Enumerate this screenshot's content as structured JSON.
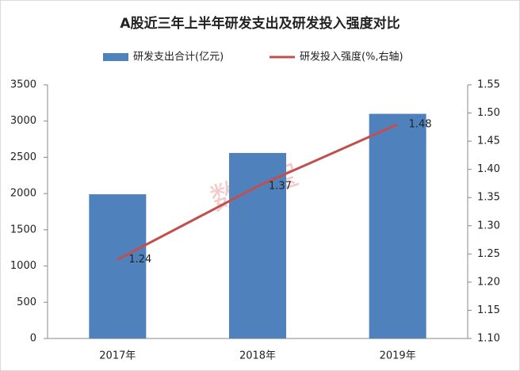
{
  "chart_data": {
    "type": "bar-line",
    "title": "A股近三年上半年研发支出及研发投入强度对比",
    "watermark": "数据宝",
    "categories": [
      "2017年",
      "2018年",
      "2019年"
    ],
    "series": [
      {
        "name": "研发支出合计(亿元)",
        "type": "bar",
        "color": "#4f81bd",
        "values": [
          1990,
          2560,
          3100
        ]
      },
      {
        "name": "研发投入强度(%,右轴)",
        "type": "line",
        "axis": "y2",
        "color": "#c0504d",
        "values": [
          1.24,
          1.37,
          1.48
        ]
      }
    ],
    "ylim": [
      0,
      3500
    ],
    "yticks": [
      0,
      500,
      1000,
      1500,
      2000,
      2500,
      3000,
      3500
    ],
    "y2lim": [
      1.1,
      1.55
    ],
    "y2ticks": [
      {
        "value": 1.1,
        "label": "1.10"
      },
      1.15,
      {
        "value": 1.2,
        "label": "1.20"
      },
      1.25,
      {
        "value": 1.3,
        "label": "1.30"
      },
      1.35,
      {
        "value": 1.4,
        "label": "1.40"
      },
      1.45,
      {
        "value": 1.5,
        "label": "1.50"
      },
      1.55
    ],
    "grid": false,
    "legend": "top"
  }
}
